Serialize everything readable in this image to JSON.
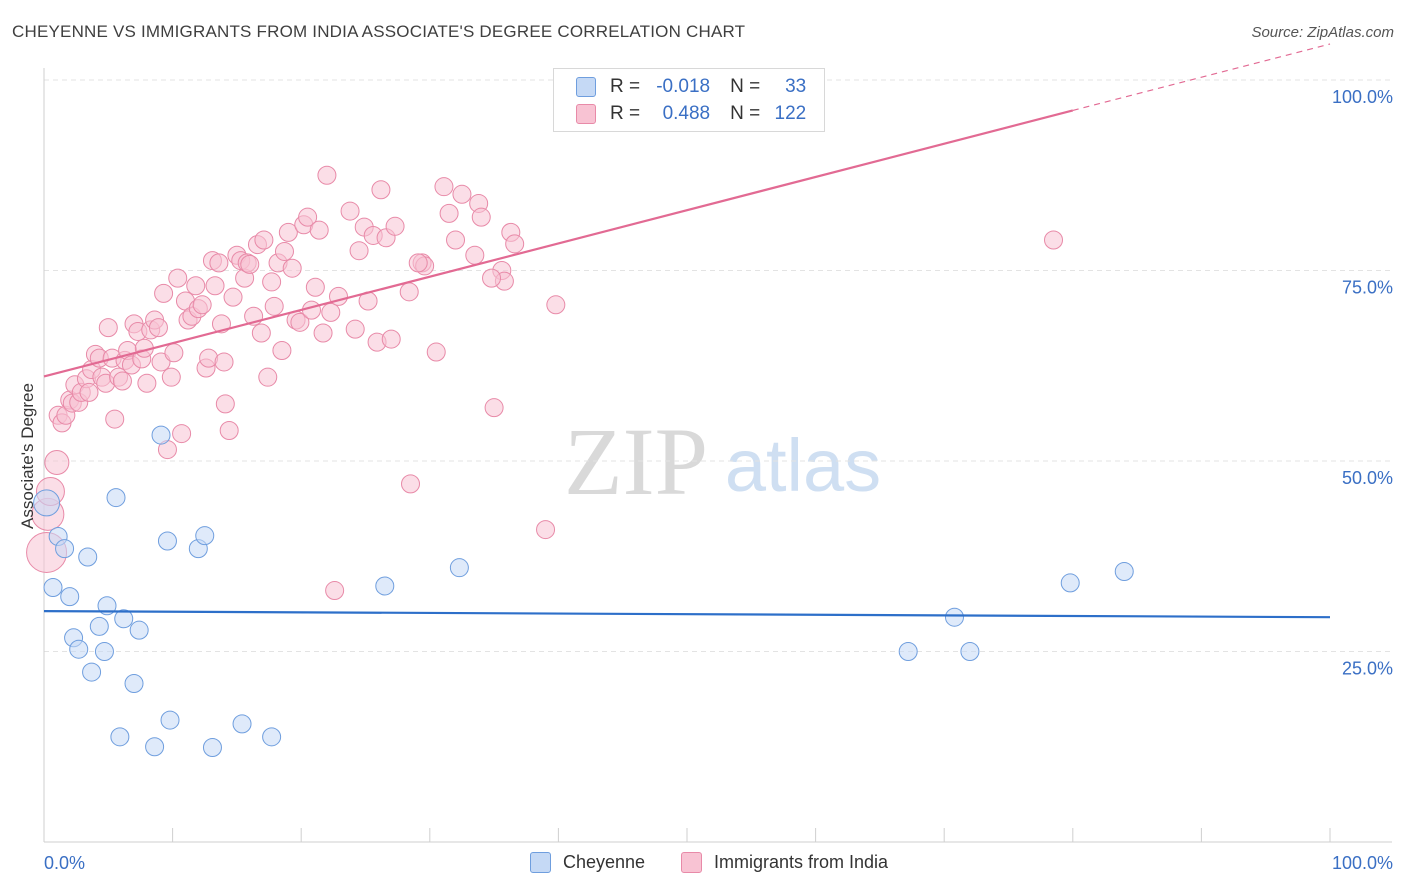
{
  "title": "CHEYENNE VS IMMIGRANTS FROM INDIA ASSOCIATE'S DEGREE CORRELATION CHART",
  "source": "Source: ZipAtlas.com",
  "watermark": {
    "zip": "ZIP",
    "atlas": "atlas"
  },
  "legend": {
    "r_label": "R =",
    "n_label": "N =",
    "rows": [
      {
        "r": "-0.018",
        "n": "33"
      },
      {
        "r": "0.488",
        "n": "122"
      }
    ]
  },
  "colors": {
    "cheyenne_fill": "#c5d9f5",
    "cheyenne_stroke": "#6f9ede",
    "cheyenne_line": "#2d6fc9",
    "india_fill": "#f8c3d3",
    "india_stroke": "#e88aa8",
    "india_line": "#e26a93",
    "axis_label": "#3a6fc4",
    "grid": "#e3e3e3"
  },
  "chart_data": {
    "type": "scatter",
    "title": "CHEYENNE VS IMMIGRANTS FROM INDIA ASSOCIATE'S DEGREE CORRELATION CHART",
    "xlabel": "",
    "ylabel": "Associate's Degree",
    "xlim": [
      0,
      100
    ],
    "ylim": [
      0,
      100
    ],
    "x_tick_labels": [
      "0.0%",
      "100.0%"
    ],
    "y_ticks": [
      25,
      50,
      75,
      100
    ],
    "y_tick_labels": [
      "25.0%",
      "50.0%",
      "75.0%",
      "100.0%"
    ],
    "grid": true,
    "series": [
      {
        "name": "Cheyenne",
        "trend": {
          "x": [
            0,
            100
          ],
          "y": [
            30.3,
            29.5
          ],
          "dashed_to": 100
        },
        "points": [
          [
            0.2,
            44.5
          ],
          [
            0.7,
            33.4
          ],
          [
            1.1,
            40.1
          ],
          [
            1.6,
            38.5
          ],
          [
            2.0,
            32.2
          ],
          [
            2.3,
            26.8
          ],
          [
            2.7,
            25.3
          ],
          [
            3.4,
            37.4
          ],
          [
            3.7,
            22.3
          ],
          [
            4.3,
            28.3
          ],
          [
            4.7,
            25.0
          ],
          [
            4.9,
            31.0
          ],
          [
            5.6,
            45.2
          ],
          [
            5.9,
            13.8
          ],
          [
            6.2,
            29.3
          ],
          [
            7.0,
            20.8
          ],
          [
            7.4,
            27.8
          ],
          [
            8.6,
            12.5
          ],
          [
            9.1,
            53.4
          ],
          [
            9.6,
            39.5
          ],
          [
            9.8,
            16.0
          ],
          [
            12.0,
            38.5
          ],
          [
            12.5,
            40.2
          ],
          [
            13.1,
            12.4
          ],
          [
            15.4,
            15.5
          ],
          [
            17.7,
            13.8
          ],
          [
            26.5,
            33.6
          ],
          [
            32.3,
            36.0
          ],
          [
            67.2,
            25.0
          ],
          [
            70.8,
            29.5
          ],
          [
            72.0,
            25.0
          ],
          [
            79.8,
            34.0
          ],
          [
            84.0,
            35.5
          ]
        ]
      },
      {
        "name": "Immigrants from India",
        "trend": {
          "x": [
            0,
            80
          ],
          "y": [
            61.1,
            96.0
          ],
          "dashed_to": 100
        },
        "points": [
          [
            0.2,
            38.0
          ],
          [
            0.3,
            43.0
          ],
          [
            0.5,
            46.0
          ],
          [
            1.0,
            49.8
          ],
          [
            1.1,
            56.0
          ],
          [
            1.4,
            55.0
          ],
          [
            1.7,
            56.0
          ],
          [
            2.0,
            58.0
          ],
          [
            2.2,
            57.6
          ],
          [
            2.4,
            60.0
          ],
          [
            2.7,
            57.7
          ],
          [
            2.9,
            59.0
          ],
          [
            3.3,
            60.8
          ],
          [
            3.5,
            59.0
          ],
          [
            3.7,
            62.0
          ],
          [
            4.0,
            64.0
          ],
          [
            4.3,
            63.5
          ],
          [
            4.5,
            61.0
          ],
          [
            4.8,
            60.2
          ],
          [
            5.0,
            67.5
          ],
          [
            5.3,
            63.5
          ],
          [
            5.5,
            55.5
          ],
          [
            5.8,
            61.0
          ],
          [
            6.1,
            60.5
          ],
          [
            6.3,
            63.2
          ],
          [
            6.5,
            64.5
          ],
          [
            6.8,
            62.6
          ],
          [
            7.0,
            68.0
          ],
          [
            7.3,
            67.0
          ],
          [
            7.6,
            63.4
          ],
          [
            7.8,
            64.8
          ],
          [
            8.0,
            60.2
          ],
          [
            8.3,
            67.2
          ],
          [
            8.6,
            68.5
          ],
          [
            8.9,
            67.5
          ],
          [
            9.1,
            63.0
          ],
          [
            9.3,
            72.0
          ],
          [
            9.6,
            51.5
          ],
          [
            9.9,
            61.0
          ],
          [
            10.1,
            64.2
          ],
          [
            10.4,
            74.0
          ],
          [
            10.7,
            53.6
          ],
          [
            11.0,
            71.0
          ],
          [
            11.2,
            68.5
          ],
          [
            11.5,
            69.0
          ],
          [
            11.8,
            73.0
          ],
          [
            12.0,
            70.0
          ],
          [
            12.3,
            70.5
          ],
          [
            12.6,
            62.2
          ],
          [
            12.8,
            63.5
          ],
          [
            13.1,
            76.3
          ],
          [
            13.3,
            73.0
          ],
          [
            13.6,
            76.0
          ],
          [
            13.8,
            68.0
          ],
          [
            14.0,
            63.0
          ],
          [
            14.1,
            57.5
          ],
          [
            14.4,
            54.0
          ],
          [
            14.7,
            71.5
          ],
          [
            15.0,
            77.0
          ],
          [
            15.3,
            76.3
          ],
          [
            15.6,
            74.0
          ],
          [
            15.8,
            76.0
          ],
          [
            16.0,
            75.8
          ],
          [
            16.3,
            69.0
          ],
          [
            16.6,
            78.4
          ],
          [
            16.9,
            66.8
          ],
          [
            17.1,
            79.0
          ],
          [
            17.4,
            61.0
          ],
          [
            17.7,
            73.5
          ],
          [
            17.9,
            70.3
          ],
          [
            18.2,
            76.0
          ],
          [
            18.5,
            64.5
          ],
          [
            18.7,
            77.5
          ],
          [
            19.0,
            80.0
          ],
          [
            19.3,
            75.3
          ],
          [
            19.6,
            68.5
          ],
          [
            19.9,
            68.2
          ],
          [
            20.2,
            81.0
          ],
          [
            20.5,
            82.0
          ],
          [
            20.8,
            69.8
          ],
          [
            21.1,
            72.8
          ],
          [
            21.4,
            80.3
          ],
          [
            21.7,
            66.8
          ],
          [
            22.0,
            87.5
          ],
          [
            22.3,
            69.5
          ],
          [
            22.6,
            33.0
          ],
          [
            22.9,
            71.6
          ],
          [
            23.8,
            82.8
          ],
          [
            24.2,
            67.3
          ],
          [
            24.5,
            77.6
          ],
          [
            24.9,
            80.7
          ],
          [
            25.2,
            71.0
          ],
          [
            25.6,
            79.6
          ],
          [
            25.9,
            65.6
          ],
          [
            26.2,
            85.6
          ],
          [
            26.6,
            79.3
          ],
          [
            27.0,
            66.0
          ],
          [
            27.3,
            80.8
          ],
          [
            28.4,
            72.2
          ],
          [
            29.4,
            76.0
          ],
          [
            29.6,
            75.6
          ],
          [
            28.5,
            47.0
          ],
          [
            29.1,
            76.0
          ],
          [
            30.5,
            64.3
          ],
          [
            31.1,
            86.0
          ],
          [
            31.5,
            82.5
          ],
          [
            32.0,
            79.0
          ],
          [
            32.5,
            85.0
          ],
          [
            33.5,
            77.0
          ],
          [
            33.8,
            83.8
          ],
          [
            34.0,
            82.0
          ],
          [
            35.0,
            57.0
          ],
          [
            35.6,
            75.0
          ],
          [
            35.8,
            73.6
          ],
          [
            36.3,
            80.0
          ],
          [
            36.6,
            78.5
          ],
          [
            39.0,
            41.0
          ],
          [
            39.8,
            70.5
          ],
          [
            78.5,
            79.0
          ],
          [
            34.8,
            74.0
          ]
        ]
      }
    ]
  },
  "bottom_legend": [
    "Cheyenne",
    "Immigrants from India"
  ]
}
